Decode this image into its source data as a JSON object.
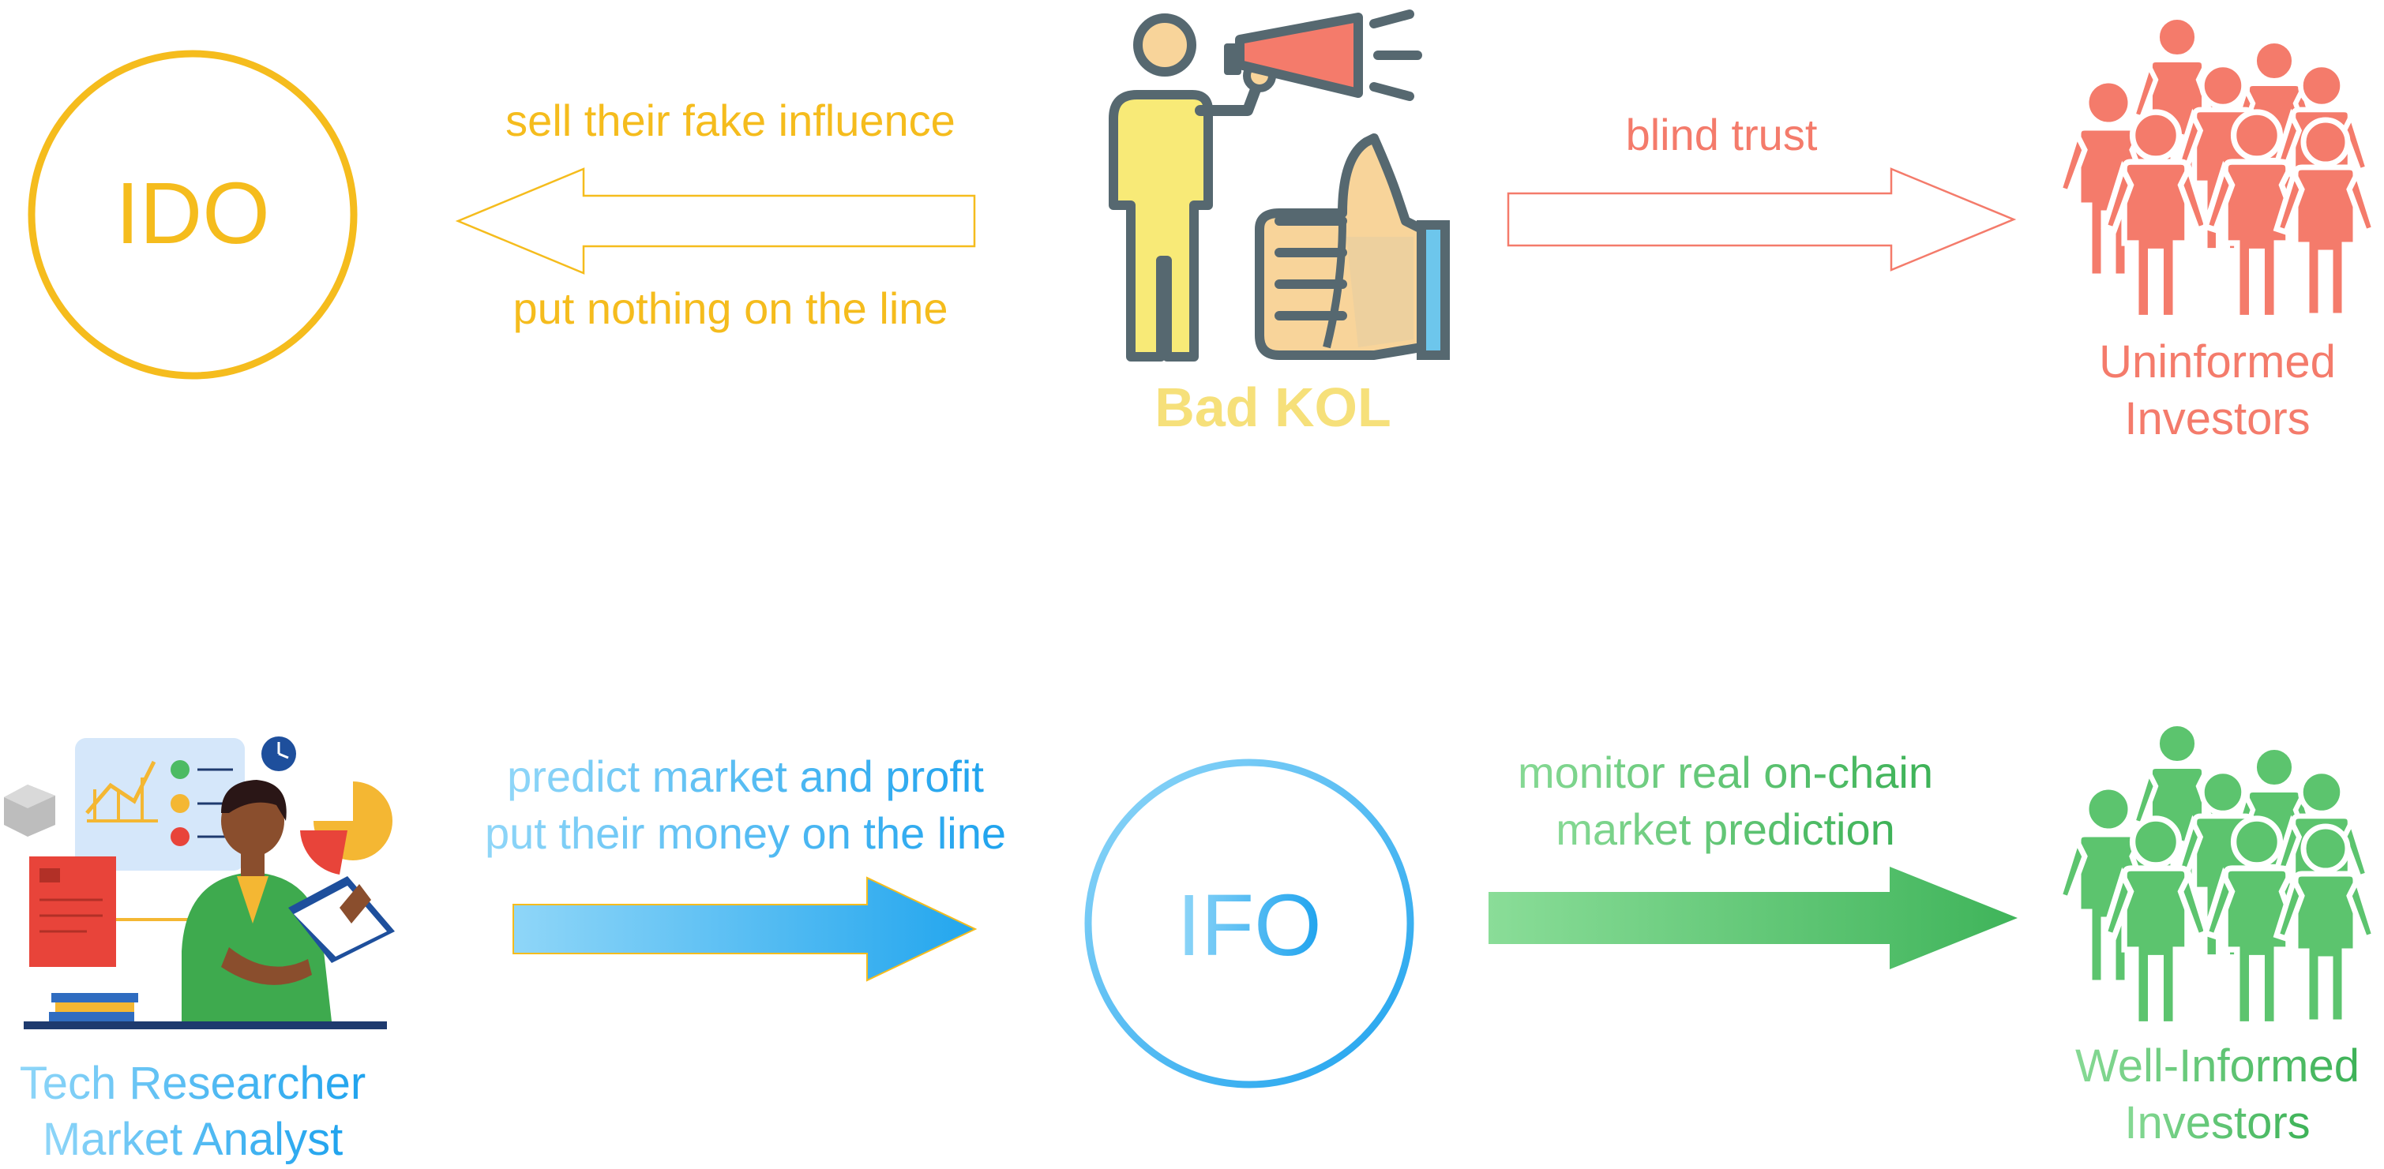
{
  "top_row": {
    "ido_label": "IDO",
    "left_arrow_top_text": "sell their fake influence",
    "left_arrow_bottom_text": "put nothing on the line",
    "kol_label": "Bad KOL",
    "right_arrow_text": "blind trust",
    "investors_label_line1": "Uninformed",
    "investors_label_line2": "Investors"
  },
  "bottom_row": {
    "researcher_label_line1": "Tech Researcher",
    "researcher_label_line2": "Market Analyst",
    "left_arrow_text_line1": "predict market and profit",
    "left_arrow_text_line2": "put their money on the line",
    "ifo_label": "IFO",
    "right_arrow_text_line1": "monitor real on-chain",
    "right_arrow_text_line2": "market prediction",
    "investors_label_line1": "Well-Informed",
    "investors_label_line2": "Investors"
  },
  "icons": {
    "kol": "megaphone-thumbs-up-icon",
    "uninformed_group": "people-group-icon",
    "researcher": "researcher-illustration-icon",
    "well_informed_group": "people-group-icon"
  },
  "colors": {
    "yellow": "#F5BC1D",
    "kol_yellow": "#F6E07A",
    "coral": "#F47B6B",
    "blue": "#29ABEF",
    "light_blue": "#7FD0F5",
    "green": "#4CBB63",
    "light_green": "#7CD68B"
  }
}
